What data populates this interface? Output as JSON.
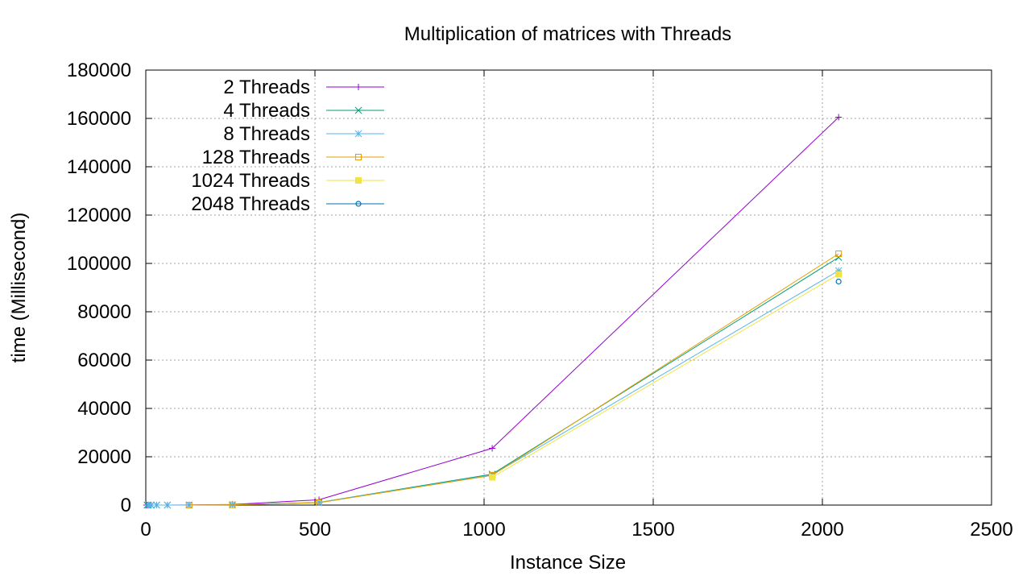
{
  "chart_data": {
    "type": "line",
    "title": "Multiplication of matrices with Threads",
    "xlabel": "Instance Size",
    "ylabel": "time (Millisecond)",
    "xlim": [
      0,
      2500
    ],
    "ylim": [
      0,
      180000
    ],
    "xticks": [
      0,
      500,
      1000,
      1500,
      2000,
      2500
    ],
    "yticks": [
      0,
      20000,
      40000,
      60000,
      80000,
      100000,
      120000,
      140000,
      160000,
      180000
    ],
    "grid": true,
    "legend_position": "top-left",
    "series": [
      {
        "name": "2 Threads",
        "color": "#9400d3",
        "marker": "plus",
        "x": [
          2,
          4,
          8,
          16,
          32,
          64,
          128,
          256,
          512,
          1024,
          2048
        ],
        "y": [
          0,
          0,
          0,
          0,
          0,
          0,
          30,
          250,
          2200,
          23500,
          160500
        ]
      },
      {
        "name": "4 Threads",
        "color": "#009e73",
        "marker": "cross",
        "x": [
          4,
          8,
          16,
          32,
          64,
          128,
          256,
          512,
          1024,
          2048
        ],
        "y": [
          0,
          0,
          0,
          0,
          0,
          20,
          130,
          1100,
          12800,
          102500
        ]
      },
      {
        "name": "8 Threads",
        "color": "#56b4e9",
        "marker": "star",
        "x": [
          8,
          16,
          32,
          64,
          128,
          256,
          512,
          1024,
          2048
        ],
        "y": [
          0,
          0,
          0,
          0,
          15,
          110,
          1000,
          12500,
          97000
        ]
      },
      {
        "name": "128 Threads",
        "color": "#e69f00",
        "marker": "open-square",
        "x": [
          128,
          256,
          512,
          1024,
          2048
        ],
        "y": [
          10,
          100,
          1000,
          12300,
          104000
        ]
      },
      {
        "name": "1024 Threads",
        "color": "#f0e442",
        "marker": "filled-square",
        "x": [
          1024,
          2048
        ],
        "y": [
          11500,
          95500
        ]
      },
      {
        "name": "2048 Threads",
        "color": "#0072b2",
        "marker": "open-circle",
        "x": [
          2048
        ],
        "y": [
          92500
        ]
      }
    ]
  }
}
